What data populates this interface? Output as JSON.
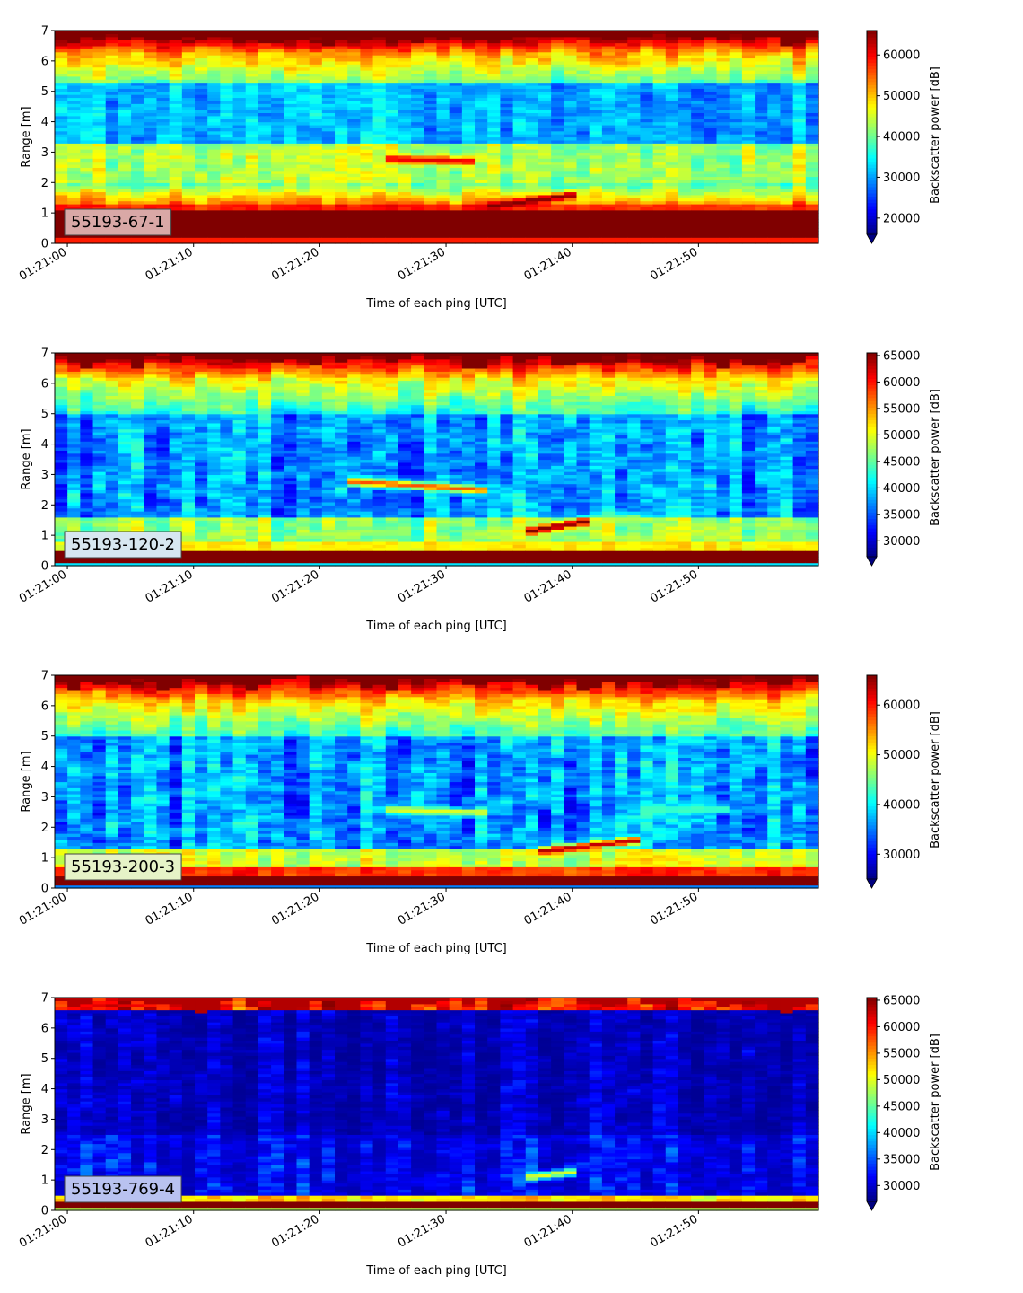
{
  "chart_data": [
    {
      "type": "heatmap",
      "label_box": "55193-67-1",
      "label_box_color": "#d9a8a6",
      "xlabel": "Time of each ping [UTC]",
      "ylabel": "Range [m]",
      "colorbar_label": "Backscatter power [dB]",
      "colorbar_extend": "min",
      "colormap": "jet",
      "x_ticks": [
        "01:21:00",
        "01:21:10",
        "01:21:20",
        "01:21:30",
        "01:21:40",
        "01:21:50"
      ],
      "x_range_seconds": [
        -1,
        59.5
      ],
      "y_ticks": [
        0,
        1,
        2,
        3,
        4,
        5,
        6,
        7
      ],
      "ylim": [
        0,
        7
      ],
      "color_ticks": [
        20000,
        30000,
        40000,
        50000,
        60000
      ],
      "vmin": 16000,
      "vmax": 66000,
      "profile": "p1",
      "features": [
        {
          "t0": 25.5,
          "t1": 32.5,
          "r0": 2.8,
          "r1": 2.7,
          "strength": 0.9
        },
        {
          "t0": 33,
          "t1": 40,
          "r0": 1.2,
          "r1": 1.6,
          "strength": 1.0
        }
      ]
    },
    {
      "type": "heatmap",
      "label_box": "55193-120-2",
      "label_box_color": "#d7e7f0",
      "xlabel": "Time of each ping [UTC]",
      "ylabel": "Range [m]",
      "colorbar_label": "Backscatter power [dB]",
      "colorbar_extend": "min",
      "colormap": "jet",
      "x_ticks": [
        "01:21:00",
        "01:21:10",
        "01:21:20",
        "01:21:30",
        "01:21:40",
        "01:21:50"
      ],
      "x_range_seconds": [
        -1,
        59.5
      ],
      "y_ticks": [
        0,
        1,
        2,
        3,
        4,
        5,
        6,
        7
      ],
      "ylim": [
        0,
        7
      ],
      "color_ticks": [
        30000,
        35000,
        40000,
        45000,
        50000,
        55000,
        60000,
        65000
      ],
      "vmin": 27000,
      "vmax": 65500,
      "profile": "p2",
      "features": [
        {
          "t0": 22,
          "t1": 33,
          "r0": 2.8,
          "r1": 2.5,
          "strength": 0.8
        },
        {
          "t0": 36,
          "t1": 41.5,
          "r0": 1.1,
          "r1": 1.5,
          "strength": 1.0
        },
        {
          "t0": 41.5,
          "t1": 45,
          "r0": 1.5,
          "r1": 1.6,
          "strength": 0.55
        }
      ]
    },
    {
      "type": "heatmap",
      "label_box": "55193-200-3",
      "label_box_color": "#e6f3c7",
      "xlabel": "Time of each ping [UTC]",
      "ylabel": "Range [m]",
      "colorbar_label": "Backscatter power [dB]",
      "colorbar_extend": "min",
      "colormap": "jet",
      "x_ticks": [
        "01:21:00",
        "01:21:10",
        "01:21:20",
        "01:21:30",
        "01:21:40",
        "01:21:50"
      ],
      "x_range_seconds": [
        -1,
        59.5
      ],
      "y_ticks": [
        0,
        1,
        2,
        3,
        4,
        5,
        6,
        7
      ],
      "ylim": [
        0,
        7
      ],
      "color_ticks": [
        30000,
        40000,
        50000,
        60000
      ],
      "vmin": 25000,
      "vmax": 66000,
      "profile": "p3",
      "features": [
        {
          "t0": 25,
          "t1": 33,
          "r0": 2.6,
          "r1": 2.5,
          "strength": 0.6
        },
        {
          "t0": 37,
          "t1": 45.5,
          "r0": 1.2,
          "r1": 1.6,
          "strength": 0.95
        },
        {
          "t0": 45,
          "t1": 52,
          "r0": 2.6,
          "r1": 2.6,
          "strength": 0.45
        }
      ]
    },
    {
      "type": "heatmap",
      "label_box": "55193-769-4",
      "label_box_color": "#b9c2f0",
      "xlabel": "Time of each ping [UTC]",
      "ylabel": "Range [m]",
      "colorbar_label": "Backscatter power [dB]",
      "colorbar_extend": "min",
      "colormap": "jet",
      "x_ticks": [
        "01:21:00",
        "01:21:10",
        "01:21:20",
        "01:21:30",
        "01:21:40",
        "01:21:50"
      ],
      "x_range_seconds": [
        -1,
        59.5
      ],
      "y_ticks": [
        0,
        1,
        2,
        3,
        4,
        5,
        6,
        7
      ],
      "ylim": [
        0,
        7
      ],
      "color_ticks": [
        30000,
        35000,
        40000,
        45000,
        50000,
        55000,
        60000,
        65000
      ],
      "vmin": 27000,
      "vmax": 65500,
      "profile": "p4",
      "features": [
        {
          "t0": 36.5,
          "t1": 40.5,
          "r0": 1.1,
          "r1": 1.3,
          "strength": 0.6
        }
      ]
    }
  ]
}
